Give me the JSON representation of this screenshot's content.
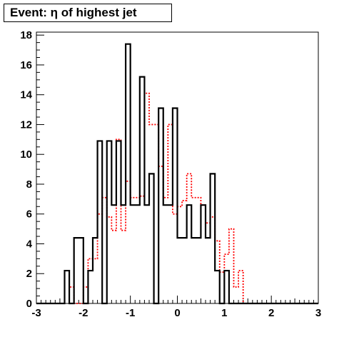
{
  "chart_data": {
    "type": "histogram",
    "title": "Event: η of highest jet",
    "xlabel": "",
    "ylabel": "",
    "xlim": [
      -3,
      3
    ],
    "ylim": [
      0,
      18.2
    ],
    "bin_width": 0.1,
    "bin_start": -3.0,
    "x_ticks": [
      -3,
      -2,
      -1,
      0,
      1,
      2,
      3
    ],
    "y_ticks": [
      0,
      2,
      4,
      6,
      8,
      10,
      12,
      14,
      16,
      18
    ],
    "grid": false,
    "series": [
      {
        "color": "#000000",
        "line_style": "solid",
        "values": [
          0,
          0,
          0,
          0,
          0,
          0,
          2.2,
          0,
          4.4,
          4.4,
          0,
          2.2,
          4.4,
          10.9,
          0,
          10.9,
          6.6,
          10.9,
          6.6,
          17.4,
          6.6,
          6.6,
          15.2,
          6.6,
          8.7,
          0,
          13.1,
          6.6,
          6.6,
          13.1,
          4.4,
          4.4,
          6.6,
          4.4,
          4.4,
          6.6,
          4.4,
          8.7,
          2.2,
          0,
          2.2,
          0,
          0,
          0,
          0,
          0,
          0,
          0,
          0,
          0,
          0,
          0,
          0,
          0,
          0,
          0,
          0,
          0,
          0,
          0
        ]
      },
      {
        "color": "#ff0000",
        "line_style": "dotted",
        "values": [
          0,
          0,
          0,
          0,
          0,
          0,
          2.2,
          1.1,
          0,
          0,
          1.1,
          3.0,
          3.0,
          6.0,
          7.1,
          5.8,
          4.9,
          11.0,
          4.9,
          8.2,
          7.1,
          7.1,
          7.2,
          14.1,
          12.0,
          12.0,
          9.2,
          7.1,
          12.0,
          6.0,
          6.5,
          6.9,
          8.7,
          7.1,
          7.1,
          6.6,
          5.4,
          5.8,
          4.2,
          2.1,
          3.3,
          5.0,
          1.1,
          2.2,
          0,
          0,
          0,
          0,
          0,
          0,
          0,
          0,
          0,
          0,
          0,
          0,
          0,
          0,
          0,
          0
        ]
      }
    ]
  }
}
